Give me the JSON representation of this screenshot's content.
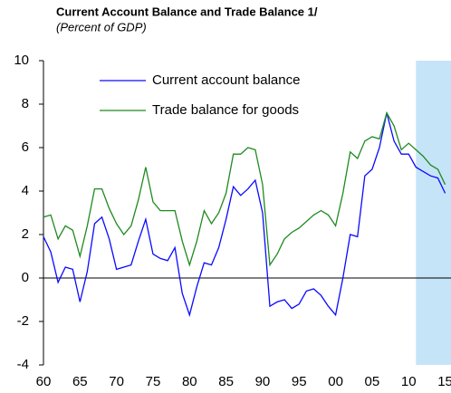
{
  "chart_data": {
    "type": "line",
    "title": "Current Account Balance and Trade Balance 1/",
    "subtitle": "(Percent of GDP)",
    "x": [
      1960,
      1961,
      1962,
      1963,
      1964,
      1965,
      1966,
      1967,
      1968,
      1969,
      1970,
      1971,
      1972,
      1973,
      1974,
      1975,
      1976,
      1977,
      1978,
      1979,
      1980,
      1981,
      1982,
      1983,
      1984,
      1985,
      1986,
      1987,
      1988,
      1989,
      1990,
      1991,
      1992,
      1993,
      1994,
      1995,
      1996,
      1997,
      1998,
      1999,
      2000,
      2001,
      2002,
      2003,
      2004,
      2005,
      2006,
      2007,
      2008,
      2009,
      2010,
      2011,
      2012,
      2013,
      2014,
      2015
    ],
    "series": [
      {
        "name": "Current account balance",
        "color": "#0a0aff",
        "values": [
          1.9,
          1.2,
          -0.2,
          0.5,
          0.4,
          -1.1,
          0.3,
          2.5,
          2.8,
          1.8,
          0.4,
          0.5,
          0.6,
          1.7,
          2.7,
          1.1,
          0.9,
          0.8,
          1.4,
          -0.7,
          -1.7,
          -0.4,
          0.7,
          0.6,
          1.4,
          2.7,
          4.2,
          3.8,
          4.1,
          4.5,
          3.0,
          -1.3,
          -1.1,
          -1.0,
          -1.4,
          -1.2,
          -0.6,
          -0.5,
          -0.8,
          -1.3,
          -1.7,
          0.0,
          2.0,
          1.9,
          4.7,
          5.0,
          6.0,
          7.6,
          6.3,
          5.7,
          5.7,
          5.1,
          4.9,
          4.7,
          4.6,
          3.9
        ]
      },
      {
        "name": "Trade balance for goods",
        "color": "#1f8a1f",
        "values": [
          2.8,
          2.9,
          1.8,
          2.4,
          2.2,
          1.0,
          2.4,
          4.1,
          4.1,
          3.2,
          2.5,
          2.0,
          2.4,
          3.6,
          5.1,
          3.5,
          3.1,
          3.1,
          3.1,
          1.7,
          0.6,
          1.7,
          3.1,
          2.5,
          3.0,
          3.9,
          5.7,
          5.7,
          6.0,
          5.9,
          4.3,
          0.6,
          1.1,
          1.8,
          2.1,
          2.3,
          2.6,
          2.9,
          3.1,
          2.9,
          2.4,
          3.9,
          5.8,
          5.5,
          6.3,
          6.5,
          6.4,
          7.6,
          7.0,
          5.9,
          6.2,
          5.9,
          5.6,
          5.2,
          5.0,
          4.3
        ]
      }
    ],
    "xlim": [
      1960,
      2015.8
    ],
    "xticks": [
      {
        "value": 1960,
        "label": "60"
      },
      {
        "value": 1965,
        "label": "65"
      },
      {
        "value": 1970,
        "label": "70"
      },
      {
        "value": 1975,
        "label": "75"
      },
      {
        "value": 1980,
        "label": "80"
      },
      {
        "value": 1985,
        "label": "85"
      },
      {
        "value": 1990,
        "label": "90"
      },
      {
        "value": 1995,
        "label": "95"
      },
      {
        "value": 2000,
        "label": "00"
      },
      {
        "value": 2005,
        "label": "05"
      },
      {
        "value": 2010,
        "label": "10"
      },
      {
        "value": 2015,
        "label": "15"
      }
    ],
    "ylim": [
      -4,
      10
    ],
    "yticks": [
      -4,
      -2,
      0,
      2,
      4,
      6,
      8,
      10
    ],
    "shade": {
      "from": 2011,
      "color": "#c6e4f8"
    },
    "legend": "top-left",
    "grid": false
  }
}
